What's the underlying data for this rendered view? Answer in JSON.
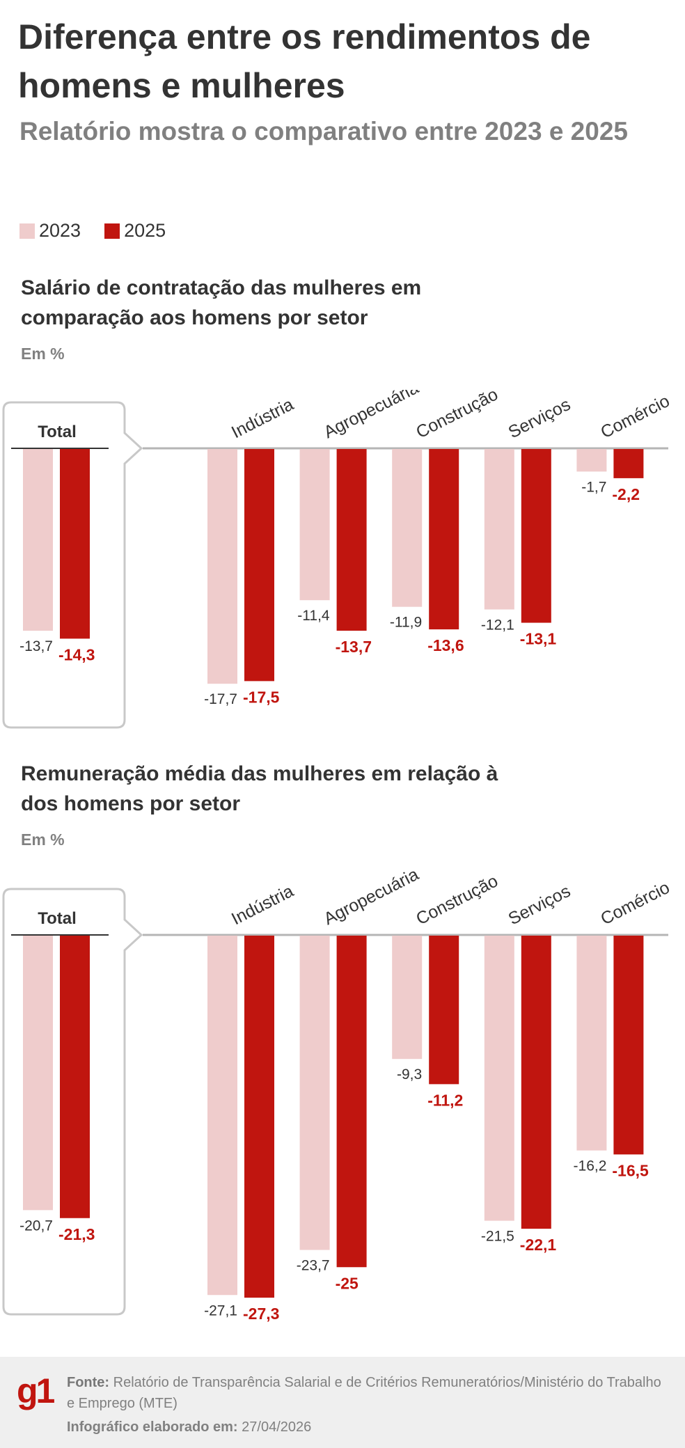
{
  "header": {
    "title": "Diferença entre os rendimentos de homens e mulheres",
    "subtitle": "Relatório mostra o comparativo entre 2023 e 2025"
  },
  "legend": [
    {
      "label": "2023",
      "color": "#efcccc"
    },
    {
      "label": "2025",
      "color": "#c0150f"
    }
  ],
  "chart_data": [
    {
      "type": "bar",
      "title": "Salário de contratação das mulheres em comparação aos homens por setor",
      "unit": "Em %",
      "total_label": "Total",
      "categories": [
        "Total",
        "Indústria",
        "Agropecuária",
        "Construção",
        "Serviços",
        "Comércio"
      ],
      "series": [
        {
          "name": "2023",
          "values": [
            -13.7,
            -17.7,
            -11.4,
            -11.9,
            -12.1,
            -1.7
          ]
        },
        {
          "name": "2025",
          "values": [
            -14.3,
            -17.5,
            -13.7,
            -13.6,
            -13.1,
            -2.2
          ]
        }
      ]
    },
    {
      "type": "bar",
      "title": "Remuneração média das mulheres em relação à dos homens por setor",
      "unit": "Em %",
      "total_label": "Total",
      "categories": [
        "Total",
        "Indústria",
        "Agropecuária",
        "Construção",
        "Serviços",
        "Comércio"
      ],
      "series": [
        {
          "name": "2023",
          "values": [
            -20.7,
            -27.1,
            -23.7,
            -9.3,
            -21.5,
            -16.2
          ]
        },
        {
          "name": "2025",
          "values": [
            -21.3,
            -27.3,
            -25,
            -11.2,
            -22.1,
            -16.5
          ]
        }
      ]
    }
  ],
  "footer": {
    "logo": "g1",
    "source_label": "Fonte:",
    "source_text": "Relatório de Transparência Salarial e de Critérios Remuneratórios/Ministério do Trabalho e Emprego (MTE)",
    "date_label": "Infográfico elaborado em:",
    "date_value": "27/04/2026"
  }
}
